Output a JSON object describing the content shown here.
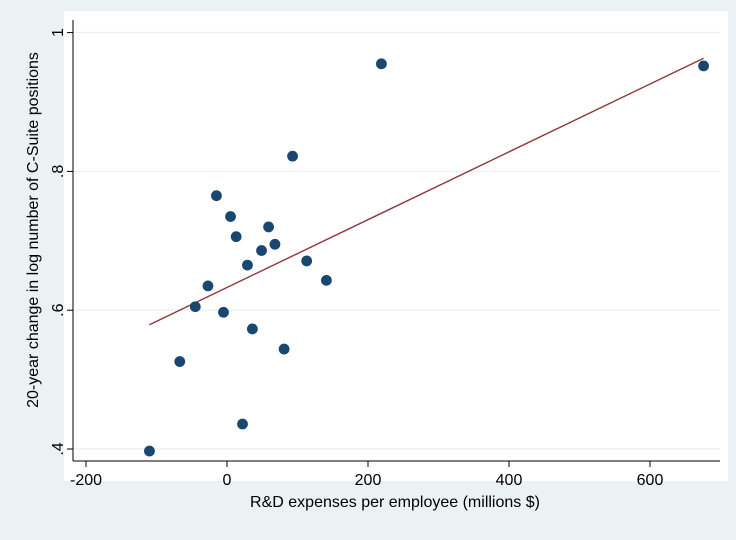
{
  "chart_data": {
    "type": "scatter",
    "xlabel": "R&D expenses per employee (millions $)",
    "ylabel": "20-year change in log number of C-Suite positions",
    "xlim": [
      -215,
      690
    ],
    "ylim": [
      0.38,
      1.02
    ],
    "x_ticks": [
      -200,
      0,
      200,
      400,
      600
    ],
    "x_tick_labels": [
      "-200",
      "0",
      "200",
      "400",
      "600"
    ],
    "y_ticks": [
      0.4,
      0.6,
      0.8,
      1.0
    ],
    "y_tick_labels": [
      ".4",
      ".6",
      ".8",
      "1"
    ],
    "grid": "horizontal",
    "legend": "none",
    "points": [
      {
        "x": -110,
        "y": 0.397
      },
      {
        "x": -67,
        "y": 0.526
      },
      {
        "x": -45,
        "y": 0.605
      },
      {
        "x": -27,
        "y": 0.635
      },
      {
        "x": -15,
        "y": 0.765
      },
      {
        "x": -5,
        "y": 0.597
      },
      {
        "x": 5,
        "y": 0.735
      },
      {
        "x": 13,
        "y": 0.706
      },
      {
        "x": 22,
        "y": 0.436
      },
      {
        "x": 29,
        "y": 0.665
      },
      {
        "x": 36,
        "y": 0.573
      },
      {
        "x": 49,
        "y": 0.686
      },
      {
        "x": 59,
        "y": 0.72
      },
      {
        "x": 68,
        "y": 0.695
      },
      {
        "x": 81,
        "y": 0.544
      },
      {
        "x": 93,
        "y": 0.822
      },
      {
        "x": 113,
        "y": 0.671
      },
      {
        "x": 141,
        "y": 0.643
      },
      {
        "x": 219,
        "y": 0.955
      },
      {
        "x": 676,
        "y": 0.952
      }
    ],
    "fit_line": {
      "x": [
        -110,
        676
      ],
      "y": [
        0.579,
        0.963
      ]
    },
    "colors": {
      "background": "#eaf2f3",
      "plot_background": "#ffffff",
      "marker": "#1a476f",
      "fit_line": "#90353b",
      "grid": "#eaf2f3"
    }
  }
}
